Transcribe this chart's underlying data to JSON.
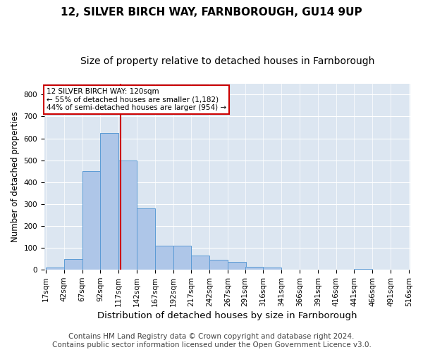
{
  "title_line1": "12, SILVER BIRCH WAY, FARNBOROUGH, GU14 9UP",
  "title_line2": "Size of property relative to detached houses in Farnborough",
  "xlabel": "Distribution of detached houses by size in Farnborough",
  "ylabel": "Number of detached properties",
  "bar_color": "#aec6e8",
  "bar_edge_color": "#5b9bd5",
  "background_color": "#dce6f1",
  "grid_color": "#ffffff",
  "fig_background": "#ffffff",
  "vline_color": "#cc0000",
  "vline_x": 120,
  "annotation_text": "12 SILVER BIRCH WAY: 120sqm\n← 55% of detached houses are smaller (1,182)\n44% of semi-detached houses are larger (954) →",
  "annotation_box_color": "#ffffff",
  "annotation_box_edge": "#cc0000",
  "bin_edges": [
    17,
    42,
    67,
    92,
    117,
    142,
    167,
    192,
    217,
    242,
    267,
    291,
    316,
    341,
    366,
    391,
    416,
    441,
    466,
    491,
    516
  ],
  "bar_heights": [
    10,
    50,
    450,
    625,
    500,
    280,
    110,
    110,
    65,
    45,
    35,
    15,
    10,
    0,
    0,
    0,
    0,
    5,
    0,
    0
  ],
  "ylim": [
    0,
    850
  ],
  "yticks": [
    0,
    100,
    200,
    300,
    400,
    500,
    600,
    700,
    800
  ],
  "footer_text": "Contains HM Land Registry data © Crown copyright and database right 2024.\nContains public sector information licensed under the Open Government Licence v3.0.",
  "title_fontsize": 11,
  "subtitle_fontsize": 10,
  "xlabel_fontsize": 9.5,
  "ylabel_fontsize": 8.5,
  "footer_fontsize": 7.5,
  "tick_fontsize": 7.5
}
